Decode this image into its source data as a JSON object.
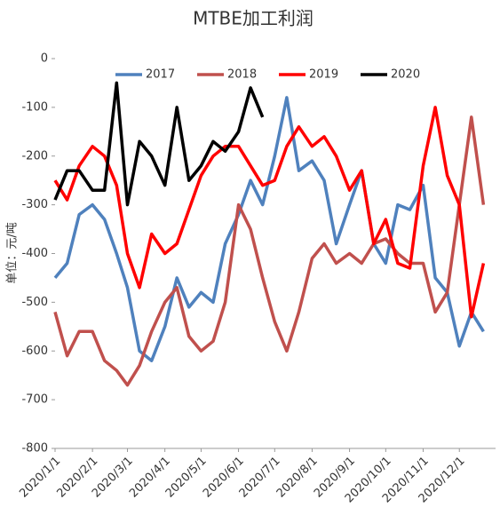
{
  "chart_data": {
    "type": "line",
    "title": "MTBE加工利润",
    "y_label": "单位：元/吨",
    "x": [
      "2020/1/1",
      "2020/1/11",
      "2020/1/21",
      "2020/2/1",
      "2020/2/11",
      "2020/2/21",
      "2020/3/1",
      "2020/3/11",
      "2020/3/21",
      "2020/4/1",
      "2020/4/11",
      "2020/4/21",
      "2020/5/1",
      "2020/5/11",
      "2020/5/21",
      "2020/6/1",
      "2020/6/11",
      "2020/6/21",
      "2020/7/1",
      "2020/7/11",
      "2020/7/21",
      "2020/8/1",
      "2020/8/11",
      "2020/8/21",
      "2020/9/1",
      "2020/9/11",
      "2020/9/21",
      "2020/10/1",
      "2020/10/11",
      "2020/10/21",
      "2020/11/1",
      "2020/11/11",
      "2020/11/21",
      "2020/12/1",
      "2020/12/11",
      "2020/12/21"
    ],
    "series": [
      {
        "name": "2017",
        "color": "#4f81bd",
        "values": [
          -450,
          -420,
          -320,
          -300,
          -330,
          -400,
          -470,
          -600,
          -620,
          -550,
          -450,
          -510,
          -480,
          -500,
          -380,
          -320,
          -250,
          -300,
          -200,
          -80,
          -230,
          -210,
          -250,
          -380,
          -300,
          -230,
          -380,
          -420,
          -300,
          -310,
          -260,
          -450,
          -480,
          -590,
          -520,
          -560
        ]
      },
      {
        "name": "2018",
        "color": "#c0504d",
        "values": [
          -520,
          -610,
          -560,
          -560,
          -620,
          -640,
          -670,
          -630,
          -560,
          -500,
          -470,
          -570,
          -600,
          -580,
          -500,
          -300,
          -350,
          -450,
          -540,
          -600,
          -520,
          -410,
          -380,
          -420,
          -400,
          -420,
          -380,
          -370,
          -400,
          -420,
          -420,
          -520,
          -480,
          -300,
          -120,
          -300
        ]
      },
      {
        "name": "2019",
        "color": "#ff0000",
        "values": [
          -250,
          -290,
          -220,
          -180,
          -200,
          -260,
          -400,
          -470,
          -360,
          -400,
          -380,
          -310,
          -240,
          -200,
          -180,
          -180,
          -220,
          -260,
          -250,
          -180,
          -140,
          -180,
          -160,
          -200,
          -270,
          -230,
          -380,
          -330,
          -420,
          -430,
          -220,
          -100,
          -240,
          -300,
          -530,
          -420
        ]
      },
      {
        "name": "2020",
        "color": "#000000",
        "values": [
          -290,
          -230,
          -230,
          -270,
          -270,
          -50,
          -300,
          -170,
          -200,
          -260,
          -100,
          -250,
          -220,
          -170,
          -190,
          -150,
          -60,
          -120,
          null,
          null,
          null,
          null,
          null,
          null,
          null,
          null,
          null,
          null,
          null,
          null,
          null,
          null,
          null,
          null,
          null,
          null
        ]
      }
    ],
    "xlim": [
      "2020/1/1",
      "2020/12/31"
    ],
    "xticks": [
      "2020/1/1",
      "2020/2/1",
      "2020/3/1",
      "2020/4/1",
      "2020/5/1",
      "2020/6/1",
      "2020/7/1",
      "2020/8/1",
      "2020/9/1",
      "2020/10/1",
      "2020/11/1",
      "2020/12/1"
    ],
    "ylim": [
      -800,
      0
    ],
    "yticks": [
      -800,
      -700,
      -600,
      -500,
      -400,
      -300,
      -200,
      -100,
      0
    ],
    "legend": "top"
  }
}
